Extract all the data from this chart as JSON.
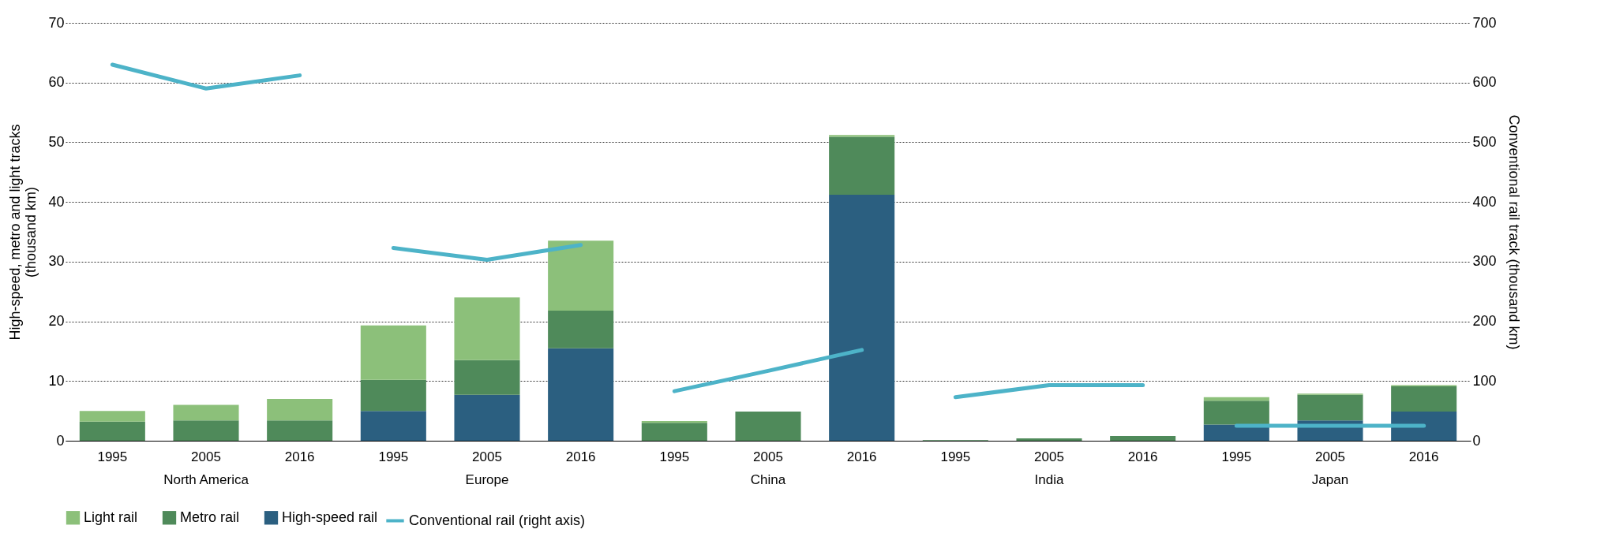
{
  "chart_data": {
    "type": "bar",
    "stacked": true,
    "categories": [
      "1995",
      "2005",
      "2016",
      "1995",
      "2005",
      "2016",
      "1995",
      "2005",
      "2016",
      "1995",
      "2005",
      "2016",
      "1995",
      "2005",
      "2016"
    ],
    "annotations": [
      "North America",
      "Europe",
      "China",
      "India",
      "Japan"
    ],
    "ylabel": "High-speed, metro and light tracks (thousand km)",
    "y2label": "Conventional rail track (thousand km)",
    "ylim": [
      0,
      70
    ],
    "yticks": [
      0,
      10,
      20,
      30,
      40,
      50,
      60,
      70
    ],
    "y2lim": [
      0,
      700
    ],
    "y2ticks": [
      0,
      100,
      200,
      300,
      400,
      500,
      600,
      700
    ],
    "grid": "y",
    "legend": "bottom",
    "series": [
      {
        "name": "High-speed rail",
        "color": "#2b5f80",
        "values": [
          0,
          0,
          0,
          5.0,
          7.7,
          15.5,
          0,
          0,
          41.2,
          0,
          0,
          0,
          2.7,
          3.4,
          4.9
        ]
      },
      {
        "name": "Metro rail",
        "color": "#4f8a5a",
        "values": [
          3.2,
          3.4,
          3.4,
          5.2,
          5.8,
          6.3,
          3.0,
          4.9,
          9.7,
          0.1,
          0.4,
          0.8,
          4.0,
          4.3,
          4.2
        ]
      },
      {
        "name": "Light rail",
        "color": "#8cc07a",
        "values": [
          1.8,
          2.6,
          3.6,
          9.1,
          10.5,
          11.7,
          0.3,
          0,
          0.3,
          0,
          0,
          0,
          0.6,
          0.2,
          0.2
        ]
      },
      {
        "name": "Conventional rail (right axis)",
        "color": "#4db3c8",
        "type": "line",
        "axis": "y2",
        "values": [
          630,
          590,
          612,
          323,
          303,
          328,
          83,
          117,
          152,
          73,
          93,
          93,
          25,
          25,
          25
        ]
      }
    ]
  }
}
